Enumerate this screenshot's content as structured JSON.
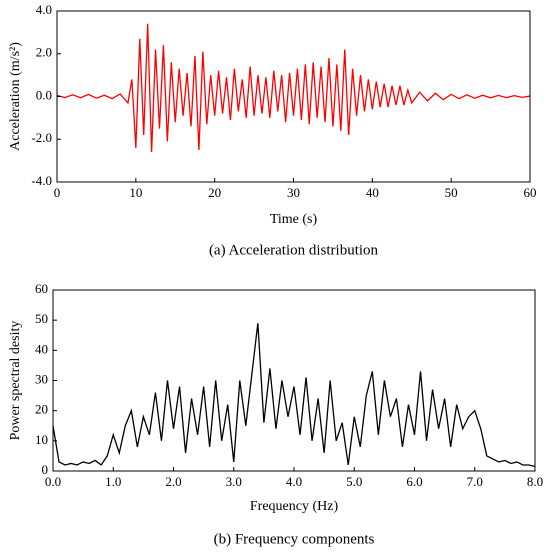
{
  "chart_data": [
    {
      "type": "line",
      "caption": "(a)  Acceleration distribution",
      "x_label": "Time (s)",
      "y_label": "Acceleration (m/s²)",
      "x": [
        0,
        1,
        2,
        3,
        4,
        5,
        6,
        7,
        8,
        9,
        9.5,
        10,
        10.5,
        11,
        11.5,
        12,
        12.5,
        13,
        13.5,
        14,
        14.5,
        15,
        15.5,
        16,
        16.5,
        17,
        17.5,
        18,
        18.5,
        19,
        19.5,
        20,
        20.5,
        21,
        21.5,
        22,
        22.5,
        23,
        23.5,
        24,
        24.5,
        25,
        25.5,
        26,
        26.5,
        27,
        27.5,
        28,
        28.5,
        29,
        29.5,
        30,
        30.5,
        31,
        31.5,
        32,
        32.5,
        33,
        33.5,
        34,
        34.5,
        35,
        35.5,
        36,
        36.5,
        37,
        37.5,
        38,
        38.5,
        39,
        39.5,
        40,
        40.5,
        41,
        41.5,
        42,
        42.5,
        43,
        43.5,
        44,
        44.5,
        45,
        46,
        47,
        48,
        49,
        50,
        51,
        52,
        53,
        54,
        55,
        56,
        57,
        58,
        59,
        60
      ],
      "series": [
        {
          "color": "#ff0000",
          "values": [
            0.05,
            -0.05,
            0.08,
            -0.06,
            0.1,
            -0.08,
            0.06,
            -0.1,
            0.12,
            -0.3,
            0.8,
            -2.4,
            2.7,
            -1.8,
            3.4,
            -2.6,
            2.2,
            -1.5,
            2.4,
            -2.1,
            1.6,
            -1.2,
            1.3,
            -0.9,
            1.1,
            -1.4,
            1.9,
            -2.5,
            2.1,
            -1.3,
            1.0,
            -0.9,
            1.2,
            -0.8,
            0.9,
            -1.1,
            1.3,
            -0.7,
            0.8,
            -1.0,
            1.4,
            -0.9,
            1.0,
            -0.8,
            0.9,
            -1.0,
            1.2,
            -0.7,
            1.0,
            -1.2,
            1.1,
            -0.9,
            1.3,
            -1.1,
            1.5,
            -1.3,
            1.6,
            -1.0,
            1.4,
            -1.2,
            1.8,
            -1.4,
            1.5,
            -1.6,
            2.2,
            -1.8,
            1.3,
            -0.9,
            1.0,
            -0.7,
            0.8,
            -0.6,
            0.7,
            -0.5,
            0.6,
            -0.5,
            0.5,
            -0.4,
            0.5,
            -0.4,
            0.3,
            -0.3,
            0.2,
            -0.2,
            0.15,
            -0.15,
            0.1,
            -0.1,
            0.08,
            -0.08,
            0.06,
            -0.06,
            0.05,
            -0.05,
            0.04,
            -0.04,
            0.02
          ]
        }
      ],
      "xlim": [
        0,
        60
      ],
      "xticks": [
        0,
        10,
        20,
        30,
        40,
        50,
        60
      ],
      "ylim": [
        -4,
        4
      ],
      "yticks": [
        {
          "value": -4,
          "label": "-4.0"
        },
        {
          "value": -2,
          "label": "-2.0"
        },
        {
          "value": 0,
          "label": "0.0"
        },
        {
          "value": 2,
          "label": "2.0"
        },
        {
          "value": 4,
          "label": "4.0"
        }
      ]
    },
    {
      "type": "line",
      "caption": "(b) Frequency components",
      "x_label": "Frequency (Hz)",
      "y_label": "Power spectral desity",
      "x": [
        0,
        0.1,
        0.2,
        0.3,
        0.4,
        0.5,
        0.6,
        0.7,
        0.8,
        0.9,
        1.0,
        1.1,
        1.2,
        1.3,
        1.4,
        1.5,
        1.6,
        1.7,
        1.8,
        1.9,
        2.0,
        2.1,
        2.2,
        2.3,
        2.4,
        2.5,
        2.6,
        2.7,
        2.8,
        2.9,
        3.0,
        3.1,
        3.2,
        3.3,
        3.4,
        3.5,
        3.6,
        3.7,
        3.8,
        3.9,
        4.0,
        4.1,
        4.2,
        4.3,
        4.4,
        4.5,
        4.6,
        4.7,
        4.8,
        4.9,
        5.0,
        5.1,
        5.2,
        5.3,
        5.4,
        5.5,
        5.6,
        5.7,
        5.8,
        5.9,
        6.0,
        6.1,
        6.2,
        6.3,
        6.4,
        6.5,
        6.6,
        6.7,
        6.8,
        6.9,
        7.0,
        7.1,
        7.2,
        7.3,
        7.4,
        7.5,
        7.6,
        7.7,
        7.8,
        7.9,
        8.0
      ],
      "series": [
        {
          "color": "#000000",
          "values": [
            15,
            3,
            2,
            2.5,
            2,
            3,
            2.5,
            3.5,
            2,
            5,
            12,
            6,
            15,
            20,
            8,
            18,
            12,
            26,
            10,
            30,
            14,
            28,
            6,
            24,
            12,
            28,
            8,
            30,
            10,
            22,
            3,
            30,
            15,
            32,
            49,
            16,
            34,
            14,
            30,
            18,
            28,
            12,
            31,
            10,
            24,
            6,
            30,
            10,
            16,
            2,
            18,
            8,
            25,
            33,
            12,
            30,
            18,
            24,
            8,
            22,
            12,
            33,
            10,
            27,
            14,
            24,
            8,
            22,
            14,
            18,
            20,
            14,
            5,
            4,
            3,
            3.5,
            2.5,
            3,
            2,
            2,
            1.5
          ]
        }
      ],
      "xlim": [
        0,
        8
      ],
      "xticks": [
        {
          "value": 0,
          "label": "0.0"
        },
        {
          "value": 1,
          "label": "1.0"
        },
        {
          "value": 2,
          "label": "2.0"
        },
        {
          "value": 3,
          "label": "3.0"
        },
        {
          "value": 4,
          "label": "4.0"
        },
        {
          "value": 5,
          "label": "5.0"
        },
        {
          "value": 6,
          "label": "6.0"
        },
        {
          "value": 7,
          "label": "7.0"
        },
        {
          "value": 8,
          "label": "8.0"
        }
      ],
      "ylim": [
        0,
        60
      ],
      "yticks": [
        0,
        10,
        20,
        30,
        40,
        50,
        60
      ]
    }
  ]
}
